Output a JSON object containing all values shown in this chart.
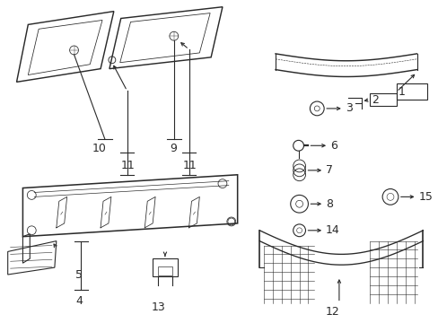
{
  "bg_color": "#ffffff",
  "line_color": "#2a2a2a",
  "lw": 0.8,
  "fs": 8
}
